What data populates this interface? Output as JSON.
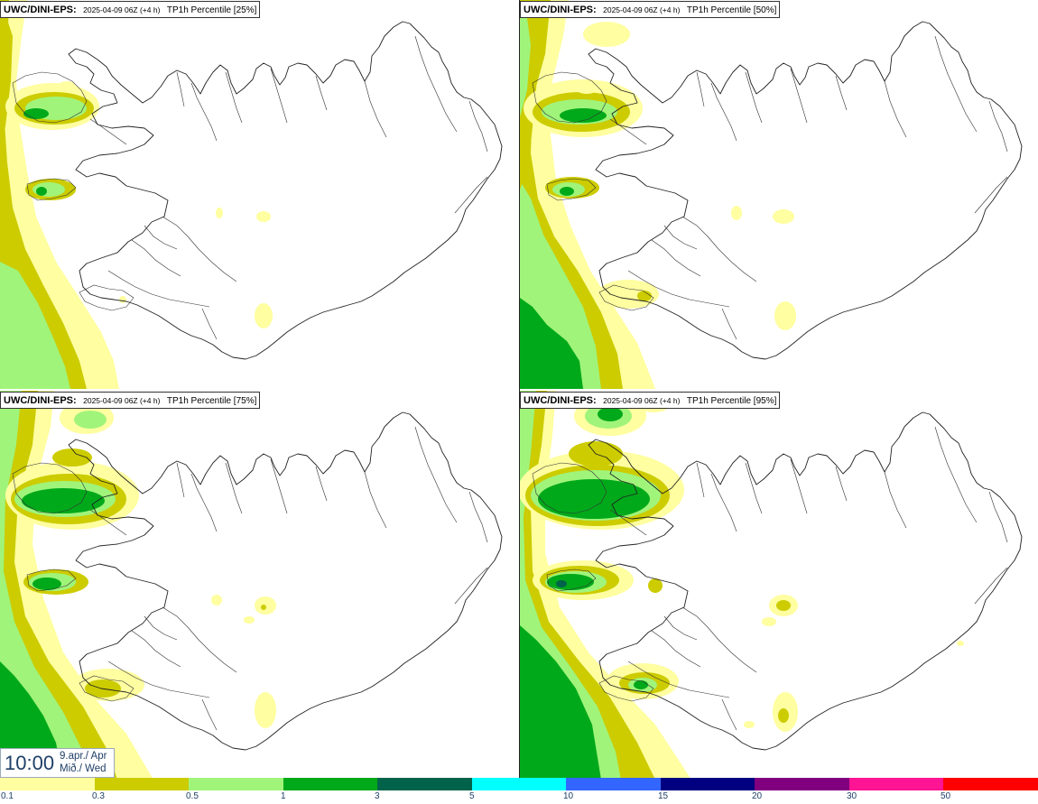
{
  "panels": [
    {
      "model": "UWC/DINI-EPS",
      "run": "2025-04-09 06Z (+4 h)",
      "param": "TP1h Percentile [25%]"
    },
    {
      "model": "UWC/DINI-EPS",
      "run": "2025-04-09 06Z (+4 h)",
      "param": "TP1h Percentile [50%]"
    },
    {
      "model": "UWC/DINI-EPS",
      "run": "2025-04-09 06Z (+4 h)",
      "param": "TP1h Percentile [75%]"
    },
    {
      "model": "UWC/DINI-EPS",
      "run": "2025-04-09 06Z (+4 h)",
      "param": "TP1h Percentile [95%]"
    }
  ],
  "valid_time": {
    "time": "10:00",
    "date": "9.apr./ Apr",
    "day": "Mið./ Wed"
  },
  "legend": {
    "ticks": [
      "0.1",
      "0.3",
      "0.5",
      "1",
      "3",
      "5",
      "10",
      "15",
      "20",
      "30",
      "50"
    ],
    "colors": [
      "#fffea0",
      "#cccc00",
      "#a0f47a",
      "#00a91a",
      "#00634a",
      "#00ffff",
      "#3366ff",
      "#000080",
      "#800080",
      "#ff1493",
      "#ff0000"
    ]
  },
  "map": {
    "region": "Iceland",
    "land_color": "#ffffff",
    "coast_color": "#222222"
  }
}
